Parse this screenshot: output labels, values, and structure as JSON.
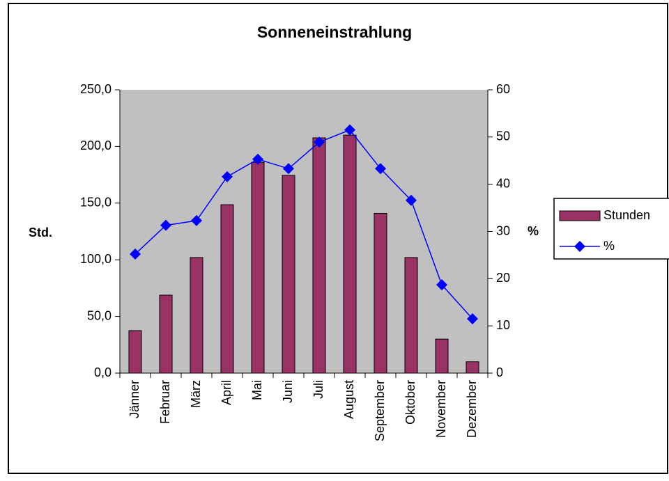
{
  "chart_data": {
    "type": "bar-line",
    "title": "Sonneneinstrahlung",
    "y_label": "Std.",
    "y2_label": "%",
    "categories": [
      "Jänner",
      "Februar",
      "März",
      "April",
      "Mai",
      "Juni",
      "Juli",
      "August",
      "September",
      "Oktober",
      "November",
      "Dezember"
    ],
    "series": [
      {
        "name": "Stunden",
        "type": "bar",
        "color": "#993366",
        "values": [
          37.5,
          68.8,
          102,
          148.6,
          186,
          174.5,
          207.6,
          210,
          141,
          102,
          30,
          10
        ]
      },
      {
        "name": "%",
        "type": "line",
        "axis": "y2",
        "color": "#0000ff",
        "values": [
          25.2,
          31.3,
          32.3,
          41.6,
          45.3,
          43.3,
          48.9,
          51.5,
          43.3,
          36.6,
          18.7,
          11.5
        ]
      }
    ],
    "ylim": [
      0,
      250
    ],
    "yticks": [
      {
        "value": 0,
        "label": "0,0"
      },
      {
        "value": 50,
        "label": "50,0"
      },
      {
        "value": 100,
        "label": "100,0"
      },
      {
        "value": 150,
        "label": "150,0"
      },
      {
        "value": 200,
        "label": "200,0"
      },
      {
        "value": 250,
        "label": "250,0"
      }
    ],
    "y2lim": [
      0,
      60
    ],
    "y2ticks": [
      0,
      10,
      20,
      30,
      40,
      50,
      60
    ],
    "plot_background": "#c0c0c0",
    "legend": "right"
  }
}
